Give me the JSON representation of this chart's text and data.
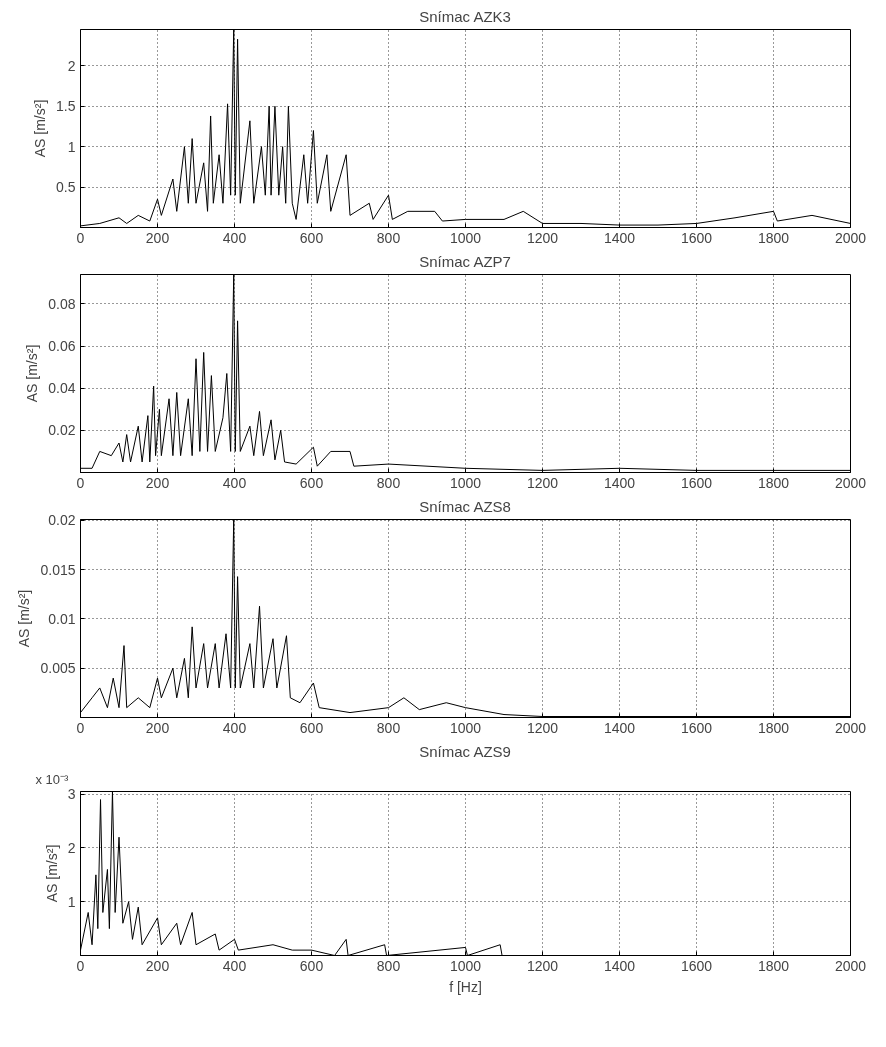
{
  "chart_data": [
    {
      "type": "line",
      "title": "Snímac AZK3",
      "ylabel": "AS [m/s²]",
      "grid": true,
      "line_style": "solid",
      "xlim": [
        0,
        2000
      ],
      "xticks": [
        0,
        200,
        400,
        600,
        800,
        1000,
        1200,
        1400,
        1600,
        1800,
        2000
      ],
      "ylim": [
        0,
        2.45
      ],
      "yticks": [
        0.5,
        1,
        1.5,
        2
      ],
      "series": [
        {
          "color": "#000000",
          "x": [
            0,
            50,
            100,
            120,
            150,
            180,
            200,
            210,
            240,
            250,
            270,
            280,
            290,
            300,
            320,
            330,
            338,
            345,
            360,
            370,
            382,
            390,
            398,
            402,
            408,
            415,
            440,
            450,
            470,
            480,
            490,
            495,
            505,
            515,
            525,
            533,
            540,
            550,
            560,
            580,
            590,
            605,
            615,
            640,
            650,
            690,
            700,
            750,
            760,
            800,
            810,
            850,
            920,
            940,
            1000,
            1100,
            1150,
            1200,
            1300,
            1400,
            1500,
            1600,
            1700,
            1800,
            1810,
            1900,
            2000
          ],
          "values": [
            0.02,
            0.05,
            0.12,
            0.05,
            0.15,
            0.08,
            0.35,
            0.15,
            0.6,
            0.2,
            1.0,
            0.3,
            1.1,
            0.3,
            0.8,
            0.2,
            1.38,
            0.3,
            0.9,
            0.3,
            1.53,
            0.4,
            2.45,
            0.4,
            2.33,
            0.3,
            1.32,
            0.3,
            1.0,
            0.4,
            1.5,
            0.4,
            1.5,
            0.4,
            1.0,
            0.3,
            1.5,
            0.3,
            0.1,
            0.9,
            0.3,
            1.2,
            0.3,
            0.9,
            0.2,
            0.9,
            0.15,
            0.3,
            0.1,
            0.4,
            0.1,
            0.2,
            0.2,
            0.08,
            0.1,
            0.1,
            0.2,
            0.05,
            0.05,
            0.03,
            0.03,
            0.05,
            0.12,
            0.2,
            0.08,
            0.15,
            0.05
          ]
        }
      ]
    },
    {
      "type": "line",
      "title": "Snímac AZP7",
      "ylabel": "AS [m/s²]",
      "grid": true,
      "line_style": "solid",
      "xlim": [
        0,
        2000
      ],
      "xticks": [
        0,
        200,
        400,
        600,
        800,
        1000,
        1200,
        1400,
        1600,
        1800,
        2000
      ],
      "ylim": [
        0,
        0.094
      ],
      "yticks": [
        0.02,
        0.04,
        0.06,
        0.08
      ],
      "series": [
        {
          "color": "#000000",
          "x": [
            0,
            30,
            50,
            80,
            100,
            110,
            120,
            130,
            150,
            160,
            175,
            180,
            190,
            195,
            205,
            210,
            230,
            240,
            250,
            260,
            280,
            290,
            300,
            310,
            320,
            330,
            340,
            350,
            370,
            380,
            390,
            398,
            402,
            408,
            415,
            440,
            450,
            465,
            475,
            495,
            505,
            520,
            530,
            560,
            605,
            615,
            650,
            700,
            710,
            800,
            900,
            1000,
            1200,
            1400,
            1600,
            1800,
            2000
          ],
          "values": [
            0.002,
            0.002,
            0.01,
            0.008,
            0.014,
            0.005,
            0.018,
            0.005,
            0.022,
            0.005,
            0.027,
            0.005,
            0.041,
            0.008,
            0.03,
            0.008,
            0.035,
            0.008,
            0.038,
            0.008,
            0.035,
            0.008,
            0.054,
            0.01,
            0.057,
            0.01,
            0.046,
            0.01,
            0.026,
            0.047,
            0.01,
            0.094,
            0.01,
            0.072,
            0.01,
            0.022,
            0.008,
            0.029,
            0.008,
            0.025,
            0.006,
            0.02,
            0.005,
            0.004,
            0.012,
            0.003,
            0.01,
            0.01,
            0.003,
            0.004,
            0.003,
            0.002,
            0.001,
            0.002,
            0.001,
            0.001,
            0.001
          ]
        }
      ]
    },
    {
      "type": "line",
      "title": "Snímac AZS8",
      "ylabel": "AS [m/s²]",
      "grid": true,
      "line_style": "solid",
      "xlim": [
        0,
        2000
      ],
      "xticks": [
        0,
        200,
        400,
        600,
        800,
        1000,
        1200,
        1400,
        1600,
        1800,
        2000
      ],
      "ylim": [
        0,
        0.0201
      ],
      "yticks": [
        0.005,
        0.01,
        0.015,
        0.02
      ],
      "series": [
        {
          "color": "#000000",
          "x": [
            0,
            30,
            50,
            70,
            85,
            100,
            113,
            120,
            150,
            180,
            200,
            210,
            240,
            250,
            270,
            280,
            290,
            300,
            320,
            330,
            350,
            360,
            378,
            390,
            398,
            402,
            408,
            415,
            440,
            450,
            465,
            475,
            500,
            510,
            535,
            545,
            570,
            605,
            620,
            700,
            800,
            840,
            880,
            950,
            1000,
            1100,
            1200,
            1400,
            2000
          ],
          "values": [
            0.0005,
            0.002,
            0.003,
            0.001,
            0.004,
            0.001,
            0.0073,
            0.001,
            0.002,
            0.001,
            0.004,
            0.002,
            0.005,
            0.002,
            0.006,
            0.002,
            0.0092,
            0.003,
            0.0075,
            0.003,
            0.0075,
            0.003,
            0.0085,
            0.003,
            0.0201,
            0.003,
            0.0143,
            0.003,
            0.0075,
            0.003,
            0.0113,
            0.003,
            0.008,
            0.003,
            0.0083,
            0.002,
            0.0015,
            0.0035,
            0.001,
            0.0005,
            0.001,
            0.002,
            0.0008,
            0.0015,
            0.001,
            0.0003,
            0.0001,
            0.0001,
            0.0001
          ]
        }
      ]
    },
    {
      "type": "line",
      "title": "Snímac AZS9",
      "ylabel": "AS [m/s²]",
      "xlabel": "f [Hz]",
      "annotations": [
        "x 10⁻³"
      ],
      "grid": true,
      "line_style": "solid",
      "xlim": [
        0,
        2000
      ],
      "xticks": [
        0,
        200,
        400,
        600,
        800,
        1000,
        1200,
        1400,
        1600,
        1800,
        2000
      ],
      "ylim": [
        0,
        3.05
      ],
      "yticks": [
        1,
        2,
        3
      ],
      "series": [
        {
          "color": "#000000",
          "x": [
            0,
            20,
            30,
            40,
            45,
            52,
            58,
            70,
            75,
            83,
            90,
            100,
            110,
            125,
            135,
            150,
            160,
            200,
            210,
            250,
            260,
            290,
            300,
            350,
            360,
            400,
            410,
            500,
            550,
            600,
            660,
            690,
            695,
            790,
            795,
            1000,
            1005,
            1090,
            1095,
            2000
          ],
          "values": [
            0.1,
            0.8,
            0.2,
            1.5,
            0.5,
            2.9,
            0.8,
            1.6,
            0.5,
            3.05,
            0.8,
            2.2,
            0.6,
            1.0,
            0.3,
            0.9,
            0.2,
            0.7,
            0.2,
            0.6,
            0.2,
            0.8,
            0.2,
            0.4,
            0.1,
            0.3,
            0.1,
            0.2,
            0.1,
            0.1,
            0,
            0.3,
            0,
            0.2,
            0,
            0.15,
            0,
            0.2,
            0,
            0
          ]
        }
      ]
    }
  ]
}
